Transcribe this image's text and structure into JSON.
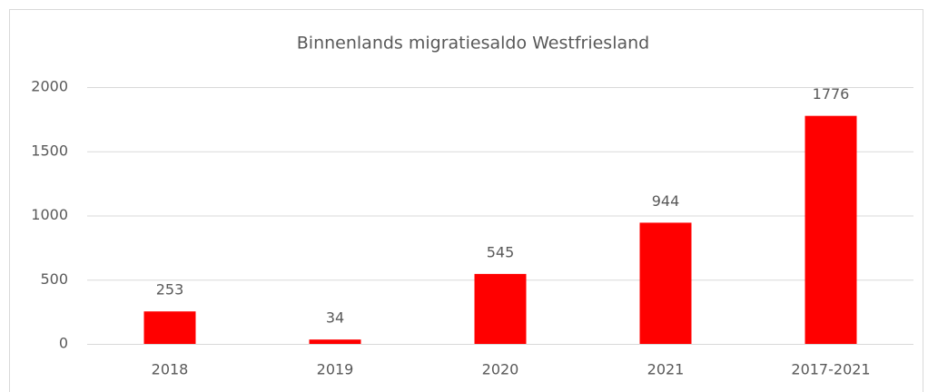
{
  "chart_data": {
    "type": "bar",
    "title": "Binnenlands migratiesaldo Westfriesland",
    "categories": [
      "2018",
      "2019",
      "2020",
      "2021",
      "2017-2021"
    ],
    "values": [
      253,
      34,
      545,
      944,
      1776
    ],
    "color": "#ff0000",
    "ylim": [
      0,
      2000
    ],
    "yticks": [
      0,
      500,
      1000,
      1500,
      2000
    ],
    "grid": true,
    "data_labels": true
  }
}
